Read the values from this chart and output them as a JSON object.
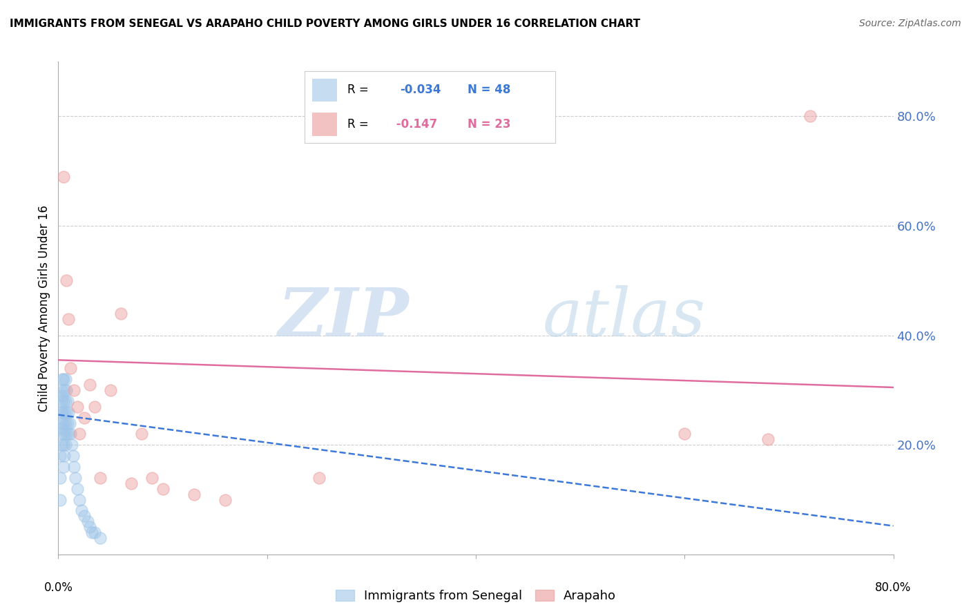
{
  "title": "IMMIGRANTS FROM SENEGAL VS ARAPAHO CHILD POVERTY AMONG GIRLS UNDER 16 CORRELATION CHART",
  "source": "Source: ZipAtlas.com",
  "ylabel": "Child Poverty Among Girls Under 16",
  "x_bottom_legend_left": "Immigrants from Senegal",
  "x_bottom_legend_right": "Arapaho",
  "right_ytick_values": [
    0.8,
    0.6,
    0.4,
    0.2
  ],
  "xlim": [
    0.0,
    0.8
  ],
  "ylim": [
    0.0,
    0.9
  ],
  "blue_color": "#9fc5e8",
  "pink_color": "#ea9999",
  "blue_line_color": "#3c78d8",
  "pink_line_color": "#e06c9f",
  "right_axis_color": "#4472c4",
  "blue_scatter_x": [
    0.002,
    0.002,
    0.002,
    0.003,
    0.003,
    0.003,
    0.003,
    0.003,
    0.004,
    0.004,
    0.004,
    0.004,
    0.004,
    0.005,
    0.005,
    0.005,
    0.005,
    0.005,
    0.006,
    0.006,
    0.006,
    0.006,
    0.007,
    0.007,
    0.007,
    0.007,
    0.008,
    0.008,
    0.008,
    0.009,
    0.009,
    0.01,
    0.01,
    0.011,
    0.012,
    0.013,
    0.014,
    0.015,
    0.016,
    0.018,
    0.02,
    0.022,
    0.025,
    0.028,
    0.03,
    0.032,
    0.035,
    0.04
  ],
  "blue_scatter_y": [
    0.1,
    0.14,
    0.18,
    0.2,
    0.23,
    0.26,
    0.28,
    0.3,
    0.22,
    0.24,
    0.26,
    0.29,
    0.32,
    0.16,
    0.2,
    0.24,
    0.28,
    0.32,
    0.18,
    0.22,
    0.26,
    0.3,
    0.2,
    0.24,
    0.28,
    0.32,
    0.22,
    0.26,
    0.3,
    0.24,
    0.28,
    0.22,
    0.26,
    0.24,
    0.22,
    0.2,
    0.18,
    0.16,
    0.14,
    0.12,
    0.1,
    0.08,
    0.07,
    0.06,
    0.05,
    0.04,
    0.04,
    0.03
  ],
  "pink_scatter_x": [
    0.005,
    0.008,
    0.01,
    0.012,
    0.015,
    0.018,
    0.02,
    0.025,
    0.03,
    0.035,
    0.04,
    0.05,
    0.06,
    0.07,
    0.08,
    0.09,
    0.1,
    0.13,
    0.16,
    0.25,
    0.6,
    0.68,
    0.72
  ],
  "pink_scatter_y": [
    0.69,
    0.5,
    0.43,
    0.34,
    0.3,
    0.27,
    0.22,
    0.25,
    0.31,
    0.27,
    0.14,
    0.3,
    0.44,
    0.13,
    0.22,
    0.14,
    0.12,
    0.11,
    0.1,
    0.14,
    0.22,
    0.21,
    0.8
  ],
  "blue_trendline_x": [
    0.0,
    0.8
  ],
  "blue_trendline_y": [
    0.255,
    0.052
  ],
  "pink_trendline_x": [
    0.0,
    0.8
  ],
  "pink_trendline_y": [
    0.355,
    0.305
  ]
}
